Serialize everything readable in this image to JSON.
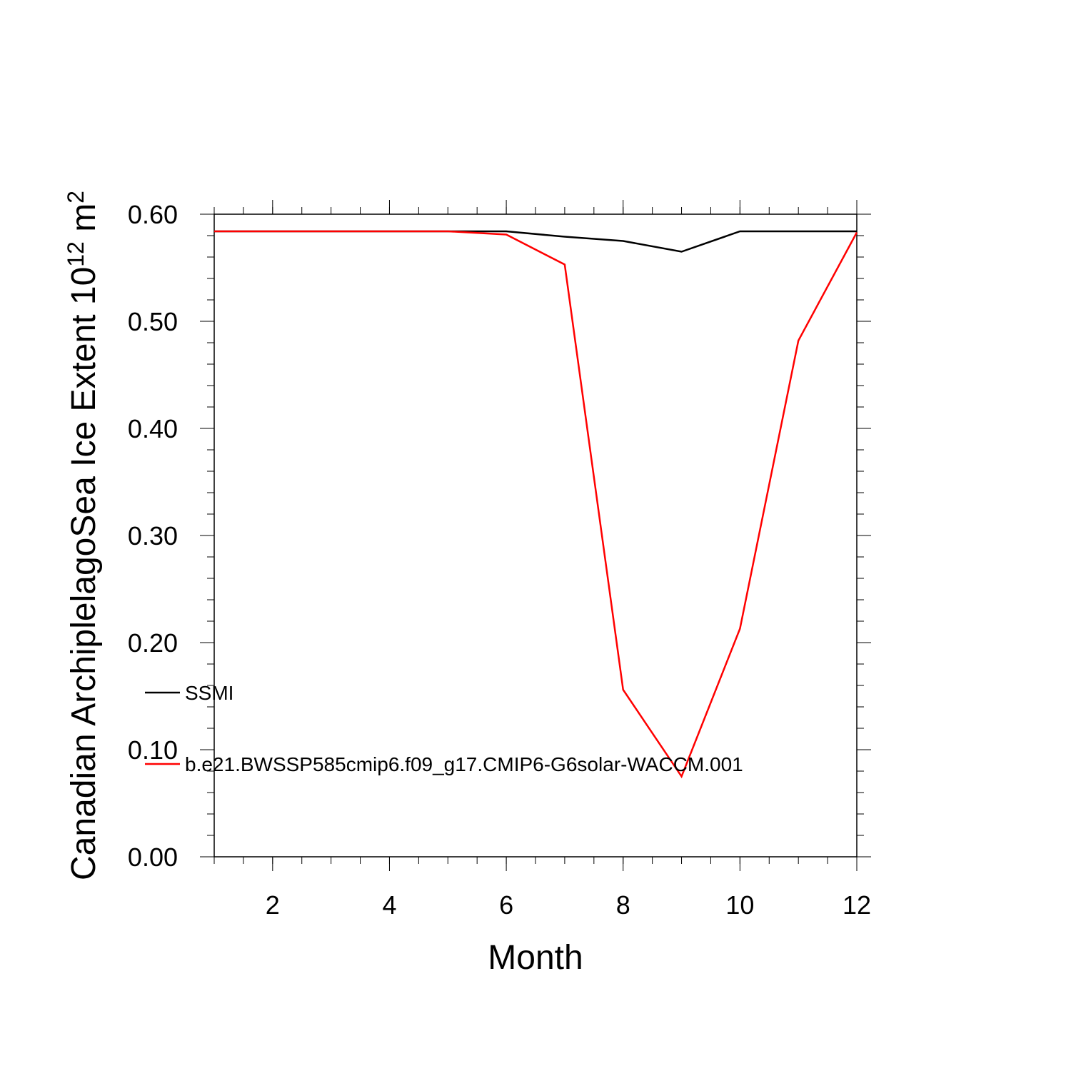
{
  "chart_data": {
    "type": "line",
    "title": "",
    "xlabel": "Month",
    "ylabel_main": "Canadian ArchiplelagoSea Ice Extent 10",
    "ylabel_exp1": "12",
    "ylabel_unit": " m",
    "ylabel_exp2": "2",
    "xlim": [
      1,
      12
    ],
    "ylim": [
      0,
      0.6
    ],
    "x_ticks": [
      2,
      4,
      6,
      8,
      10,
      12
    ],
    "x_tick_labels": [
      "2",
      "4",
      "6",
      "8",
      "10",
      "12"
    ],
    "y_ticks": [
      0,
      0.1,
      0.2,
      0.3,
      0.4,
      0.5,
      0.6
    ],
    "y_tick_labels": [
      "0.00",
      "0.10",
      "0.20",
      "0.30",
      "0.40",
      "0.50",
      "0.60"
    ],
    "grid": false,
    "legend_position": "lower-left",
    "x": [
      1,
      2,
      3,
      4,
      5,
      6,
      7,
      8,
      9,
      10,
      11,
      12
    ],
    "series": [
      {
        "name": "SSMI",
        "color": "#000000",
        "values": [
          0.584,
          0.584,
          0.584,
          0.584,
          0.584,
          0.584,
          0.579,
          0.575,
          0.565,
          0.584,
          0.584,
          0.584
        ]
      },
      {
        "name": "b.e21.BWSSP585cmip6.f09_g17.CMIP6-G6solar-WACCM.001",
        "color": "#ff0000",
        "values": [
          0.584,
          0.584,
          0.584,
          0.584,
          0.584,
          0.581,
          0.553,
          0.156,
          0.075,
          0.213,
          0.482,
          0.583
        ]
      }
    ]
  }
}
